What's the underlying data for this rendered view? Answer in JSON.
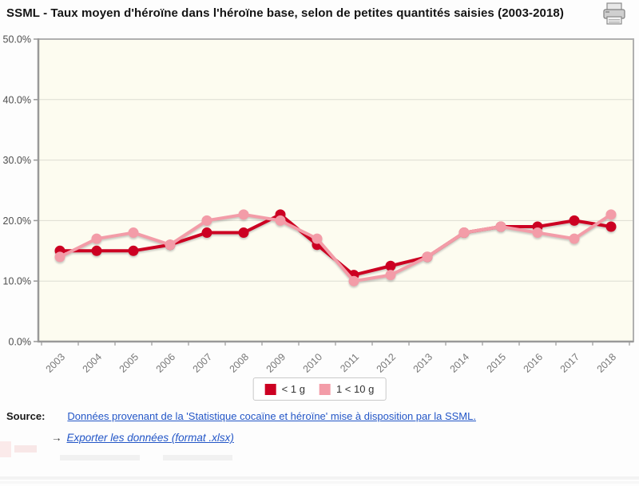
{
  "header": {
    "title": "SSML - Taux moyen d'héroïne dans l'héroïne base, selon de petites quantités saisies (2003-2018)"
  },
  "chart_data": {
    "type": "line",
    "title": "SSML - Taux moyen d'héroïne dans l'héroïne base, selon de petites quantités saisies (2003-2018)",
    "x": [
      "2003",
      "2004",
      "2005",
      "2006",
      "2007",
      "2008",
      "2009",
      "2010",
      "2011",
      "2012",
      "2013",
      "2014",
      "2015",
      "2016",
      "2017",
      "2018"
    ],
    "series": [
      {
        "name": "< 1 g",
        "color": "#CC0022",
        "values": [
          15,
          15,
          15,
          16,
          18,
          18,
          21,
          16,
          11,
          12.5,
          14,
          18,
          19,
          19,
          20,
          19
        ]
      },
      {
        "name": "1 < 10 g",
        "color": "#F39CA8",
        "values": [
          14,
          17,
          18,
          16,
          20,
          21,
          20,
          17,
          10,
          11,
          14,
          18,
          19,
          18,
          17,
          21
        ]
      }
    ],
    "ylabel": "",
    "xlabel": "",
    "ylim": [
      0,
      50
    ],
    "y_tick_step": 10,
    "y_tick_labels": [
      "0.0%",
      "10.0%",
      "20.0%",
      "30.0%",
      "40.0%",
      "50.0%"
    ],
    "grid": true,
    "legend_position": "bottom",
    "plot_background": "#FDFCF0"
  },
  "legend": {
    "items": [
      {
        "label": "< 1 g",
        "color": "#CC0022"
      },
      {
        "label": "1 < 10 g",
        "color": "#F39CA8"
      }
    ]
  },
  "source": {
    "label": "Source:",
    "link_text": "Données provenant de la 'Statistique cocaïne et héroïne' mise à disposition par la SSML."
  },
  "export": {
    "arrow": "→",
    "link_text": "Exporter les données (format .xlsx)"
  }
}
